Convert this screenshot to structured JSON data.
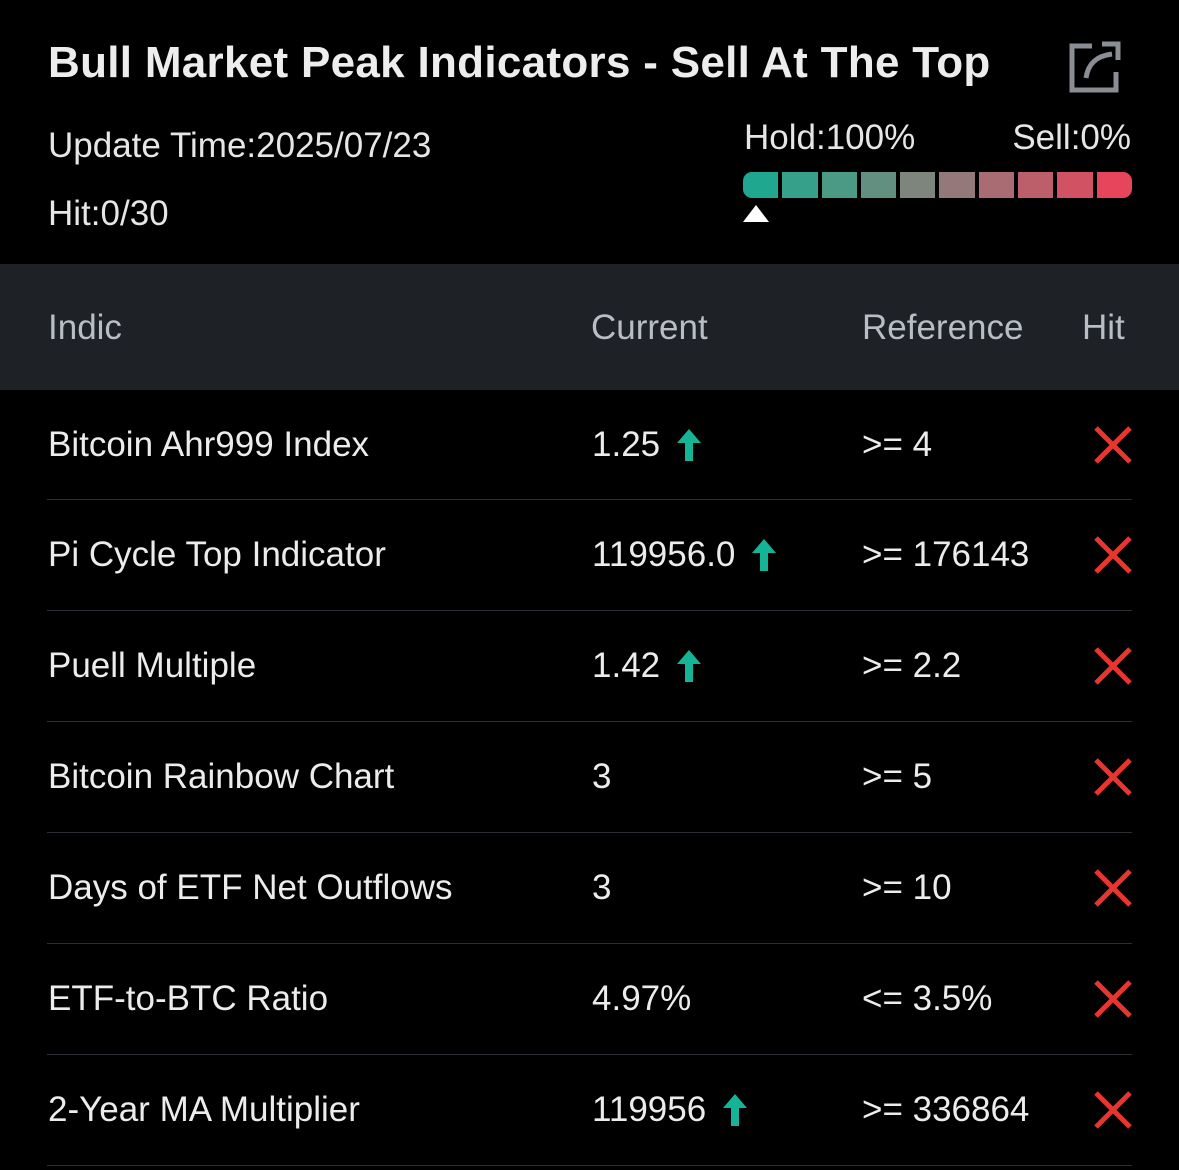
{
  "header": {
    "title": "Bull Market Peak Indicators - Sell At The Top",
    "update_time": "Update Time:2025/07/23",
    "hit_summary": "Hit:0/30",
    "share_icon": "share-icon"
  },
  "gauge": {
    "hold_label": "Hold:100%",
    "sell_label": "Sell:0%",
    "hold_percent": 100,
    "sell_percent": 0,
    "segment_colors": [
      "#1fa88f",
      "#36a08a",
      "#4b9a86",
      "#628f80",
      "#7d857c",
      "#937979",
      "#a96c72",
      "#bd5f6b",
      "#d05263",
      "#e6455b"
    ],
    "marker_position_percent": 0
  },
  "table": {
    "headers": {
      "indicator": "Indic",
      "current": "Current",
      "reference": "Reference",
      "hit": "Hit"
    },
    "rows": [
      {
        "name": "Bitcoin Ahr999 Index",
        "current": "1.25",
        "trend": "up",
        "reference": ">= 4",
        "hit": false
      },
      {
        "name": "Pi Cycle Top Indicator",
        "current": "119956.0",
        "trend": "up",
        "reference": ">= 176143",
        "hit": false
      },
      {
        "name": "Puell Multiple",
        "current": "1.42",
        "trend": "up",
        "reference": ">= 2.2",
        "hit": false
      },
      {
        "name": "Bitcoin Rainbow Chart",
        "current": "3",
        "trend": "",
        "reference": ">= 5",
        "hit": false
      },
      {
        "name": "Days of ETF Net Outflows",
        "current": "3",
        "trend": "",
        "reference": ">= 10",
        "hit": false
      },
      {
        "name": "ETF-to-BTC Ratio",
        "current": "4.97%",
        "trend": "",
        "reference": "<= 3.5%",
        "hit": false
      },
      {
        "name": "2-Year MA Multiplier",
        "current": "119956",
        "trend": "up",
        "reference": ">= 336864",
        "hit": false
      }
    ]
  },
  "colors": {
    "up_arrow": "#16b496",
    "miss_mark": "#e8362e",
    "background": "#000000",
    "header_row_bg": "#1e2125"
  }
}
